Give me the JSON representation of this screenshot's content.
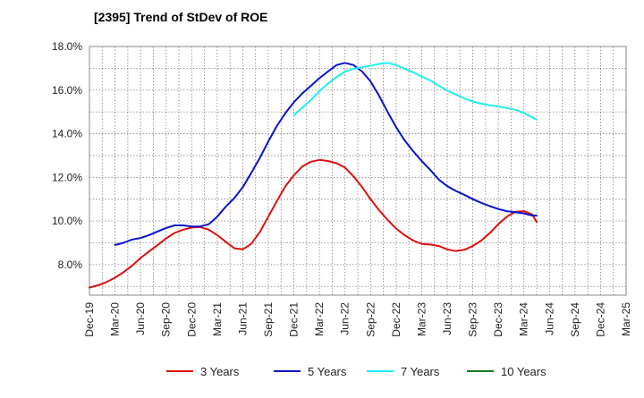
{
  "chart_data": {
    "type": "line",
    "title": "[2395]  Trend of StDev of ROE",
    "xlabel": "",
    "ylabel": "",
    "ylim": [
      6.6,
      18.0
    ],
    "y_ticks": [
      "8.0%",
      "10.0%",
      "12.0%",
      "14.0%",
      "16.0%",
      "18.0%"
    ],
    "y_tick_values": [
      8,
      10,
      12,
      14,
      16,
      18
    ],
    "x_categories": [
      "Dec-19",
      "Mar-20",
      "Jun-20",
      "Sep-20",
      "Dec-20",
      "Mar-21",
      "Jun-21",
      "Sep-21",
      "Dec-21",
      "Mar-22",
      "Jun-22",
      "Sep-22",
      "Dec-22",
      "Mar-23",
      "Jun-23",
      "Sep-23",
      "Dec-23",
      "Mar-24",
      "Jun-24",
      "Sep-24",
      "Dec-24",
      "Mar-25"
    ],
    "grid": true,
    "legend_position": "bottom",
    "series": [
      {
        "name": "3 Years",
        "color": "#dd1111",
        "points": [
          [
            0,
            6.95
          ],
          [
            0.33,
            7.05
          ],
          [
            0.67,
            7.2
          ],
          [
            1,
            7.4
          ],
          [
            1.33,
            7.65
          ],
          [
            1.67,
            7.95
          ],
          [
            2,
            8.3
          ],
          [
            2.33,
            8.6
          ],
          [
            2.67,
            8.9
          ],
          [
            3,
            9.2
          ],
          [
            3.33,
            9.45
          ],
          [
            3.67,
            9.6
          ],
          [
            4,
            9.7
          ],
          [
            4.33,
            9.72
          ],
          [
            4.67,
            9.6
          ],
          [
            5,
            9.35
          ],
          [
            5.33,
            9.05
          ],
          [
            5.67,
            8.75
          ],
          [
            6,
            8.7
          ],
          [
            6.33,
            8.95
          ],
          [
            6.67,
            9.5
          ],
          [
            7,
            10.2
          ],
          [
            7.33,
            10.9
          ],
          [
            7.67,
            11.6
          ],
          [
            8,
            12.1
          ],
          [
            8.33,
            12.5
          ],
          [
            8.67,
            12.72
          ],
          [
            9,
            12.8
          ],
          [
            9.33,
            12.75
          ],
          [
            9.67,
            12.65
          ],
          [
            10,
            12.45
          ],
          [
            10.33,
            12.05
          ],
          [
            10.67,
            11.55
          ],
          [
            11,
            11.0
          ],
          [
            11.33,
            10.5
          ],
          [
            11.67,
            10.05
          ],
          [
            12,
            9.65
          ],
          [
            12.33,
            9.35
          ],
          [
            12.67,
            9.1
          ],
          [
            13,
            8.95
          ],
          [
            13.33,
            8.92
          ],
          [
            13.67,
            8.85
          ],
          [
            14,
            8.7
          ],
          [
            14.33,
            8.62
          ],
          [
            14.67,
            8.68
          ],
          [
            15,
            8.85
          ],
          [
            15.33,
            9.1
          ],
          [
            15.67,
            9.45
          ],
          [
            16,
            9.85
          ],
          [
            16.33,
            10.2
          ],
          [
            16.67,
            10.42
          ],
          [
            17,
            10.45
          ],
          [
            17.33,
            10.3
          ],
          [
            17.5,
            9.95
          ]
        ]
      },
      {
        "name": "5 Years",
        "color": "#0a14c8",
        "points": [
          [
            1,
            8.9
          ],
          [
            1.33,
            9.0
          ],
          [
            1.67,
            9.15
          ],
          [
            2,
            9.22
          ],
          [
            2.33,
            9.35
          ],
          [
            2.67,
            9.52
          ],
          [
            3,
            9.68
          ],
          [
            3.33,
            9.8
          ],
          [
            3.67,
            9.8
          ],
          [
            4,
            9.75
          ],
          [
            4.33,
            9.75
          ],
          [
            4.67,
            9.85
          ],
          [
            5,
            10.2
          ],
          [
            5.33,
            10.65
          ],
          [
            5.67,
            11.05
          ],
          [
            6,
            11.55
          ],
          [
            6.33,
            12.2
          ],
          [
            6.67,
            12.9
          ],
          [
            7,
            13.65
          ],
          [
            7.33,
            14.35
          ],
          [
            7.67,
            14.95
          ],
          [
            8,
            15.45
          ],
          [
            8.33,
            15.85
          ],
          [
            8.67,
            16.2
          ],
          [
            9,
            16.55
          ],
          [
            9.33,
            16.85
          ],
          [
            9.67,
            17.15
          ],
          [
            10,
            17.25
          ],
          [
            10.33,
            17.15
          ],
          [
            10.67,
            16.85
          ],
          [
            11,
            16.4
          ],
          [
            11.33,
            15.75
          ],
          [
            11.67,
            15.0
          ],
          [
            12,
            14.3
          ],
          [
            12.33,
            13.7
          ],
          [
            12.67,
            13.2
          ],
          [
            13,
            12.75
          ],
          [
            13.33,
            12.35
          ],
          [
            13.67,
            11.9
          ],
          [
            14,
            11.6
          ],
          [
            14.33,
            11.38
          ],
          [
            14.67,
            11.2
          ],
          [
            15,
            11.0
          ],
          [
            15.33,
            10.83
          ],
          [
            15.67,
            10.68
          ],
          [
            16,
            10.55
          ],
          [
            16.33,
            10.45
          ],
          [
            16.67,
            10.4
          ],
          [
            17,
            10.35
          ],
          [
            17.33,
            10.25
          ],
          [
            17.5,
            10.25
          ]
        ]
      },
      {
        "name": "7 Years",
        "color": "#22eeee",
        "points": [
          [
            8,
            14.85
          ],
          [
            8.33,
            15.2
          ],
          [
            8.67,
            15.55
          ],
          [
            9,
            15.95
          ],
          [
            9.33,
            16.3
          ],
          [
            9.67,
            16.6
          ],
          [
            10,
            16.85
          ],
          [
            10.33,
            16.98
          ],
          [
            10.67,
            17.05
          ],
          [
            11,
            17.12
          ],
          [
            11.33,
            17.2
          ],
          [
            11.67,
            17.25
          ],
          [
            12,
            17.15
          ],
          [
            12.33,
            16.98
          ],
          [
            12.67,
            16.82
          ],
          [
            13,
            16.62
          ],
          [
            13.33,
            16.45
          ],
          [
            13.67,
            16.2
          ],
          [
            14,
            15.98
          ],
          [
            14.33,
            15.8
          ],
          [
            14.67,
            15.62
          ],
          [
            15,
            15.48
          ],
          [
            15.33,
            15.38
          ],
          [
            15.67,
            15.3
          ],
          [
            16,
            15.25
          ],
          [
            16.33,
            15.18
          ],
          [
            16.67,
            15.1
          ],
          [
            17,
            14.95
          ],
          [
            17.33,
            14.75
          ],
          [
            17.5,
            14.65
          ]
        ]
      },
      {
        "name": "10 Years",
        "color": "#1a7a1a",
        "points": []
      }
    ]
  }
}
